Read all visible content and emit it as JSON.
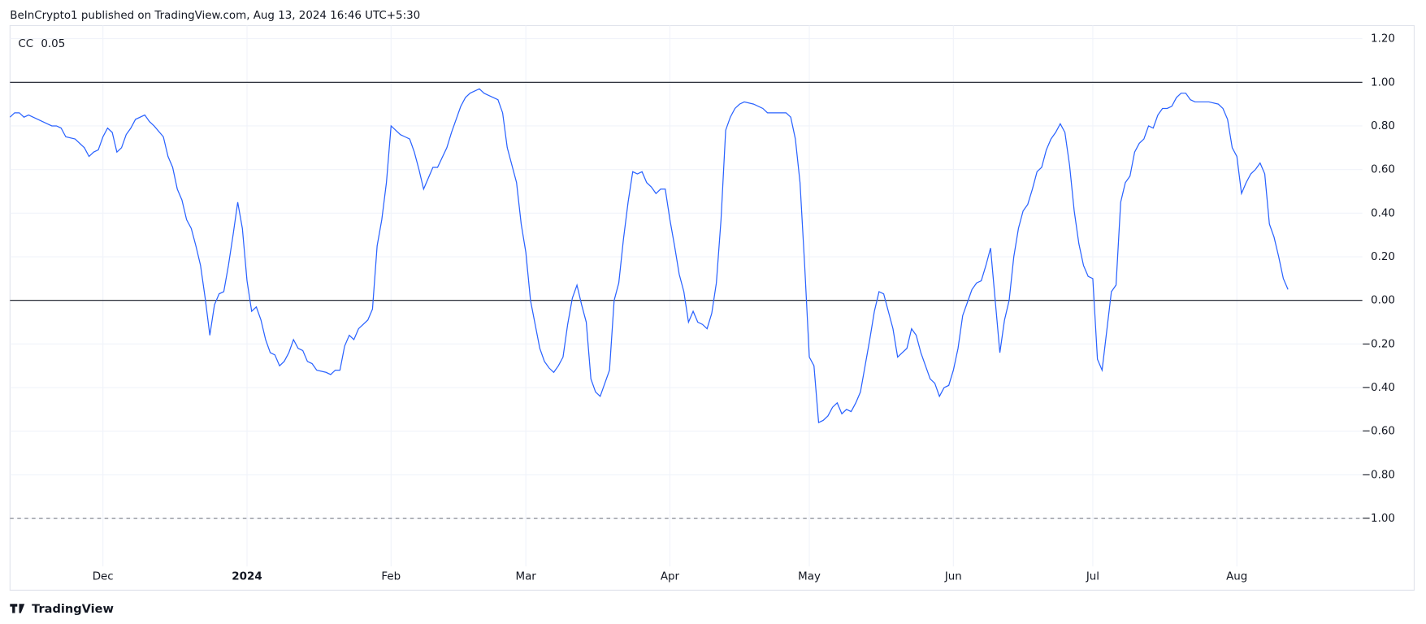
{
  "header": "BeInCrypto1 published on TradingView.com, Aug 13, 2024 16:46 UTC+5:30",
  "footer": "TradingView",
  "chart_data": {
    "type": "line",
    "current_value": 0.05,
    "x": [
      0,
      1,
      2,
      3,
      4,
      6,
      8,
      9,
      10,
      11,
      12,
      14,
      16,
      17,
      18,
      19,
      20,
      21,
      22,
      23,
      24,
      25,
      26,
      27,
      29,
      30,
      31,
      33,
      34,
      35,
      36,
      37,
      38,
      39,
      40,
      41,
      42,
      43,
      44,
      45,
      46,
      47,
      48,
      49,
      50,
      51,
      52,
      53,
      54,
      55,
      56,
      57,
      58,
      59,
      60,
      61,
      62,
      63,
      64,
      65,
      66,
      68,
      69,
      70,
      71,
      72,
      73,
      74,
      75,
      77,
      78,
      79,
      80,
      81,
      82,
      83,
      84,
      85,
      86,
      87,
      88,
      89,
      90,
      91,
      92,
      94,
      95,
      96,
      97,
      98,
      99,
      101,
      102,
      103,
      105,
      106,
      107,
      109,
      110,
      111,
      112,
      113,
      114,
      115,
      116,
      117,
      118,
      119,
      120,
      121,
      122,
      123,
      124,
      125,
      126,
      127,
      128,
      129,
      130,
      131,
      132,
      133,
      134,
      135,
      136,
      137,
      138,
      139,
      140,
      141,
      142,
      143,
      144,
      145,
      146,
      147,
      148,
      149,
      150,
      151,
      152,
      153,
      154,
      155,
      156,
      157,
      158,
      160,
      162,
      163,
      165,
      167,
      168,
      169,
      170,
      171,
      172,
      173,
      174,
      175,
      176,
      177,
      178,
      179,
      180,
      181,
      182,
      183,
      184,
      185,
      186,
      187,
      188,
      189,
      190,
      191,
      192,
      193,
      194,
      195,
      196,
      197,
      198,
      199,
      200,
      201,
      202,
      203,
      204,
      205,
      206,
      207,
      208,
      209,
      210,
      211,
      212,
      213,
      214,
      215,
      216,
      217,
      218,
      219,
      220,
      221,
      222,
      223,
      224,
      225,
      226,
      227,
      228,
      229,
      230,
      231,
      232,
      233,
      234,
      235,
      236,
      237,
      238,
      239,
      240,
      241,
      242,
      243,
      244,
      245,
      246,
      247,
      248,
      249,
      250,
      251,
      252,
      253,
      254,
      255,
      256,
      257,
      258,
      260,
      261,
      262,
      263,
      264,
      265,
      266,
      267,
      268,
      269,
      270,
      271,
      272,
      273,
      274,
      275
    ],
    "series": [
      {
        "name": "CC",
        "color": "#2962ff",
        "values": [
          0.84,
          0.86,
          0.86,
          0.84,
          0.85,
          0.83,
          0.81,
          0.8,
          0.8,
          0.79,
          0.75,
          0.74,
          0.7,
          0.66,
          0.68,
          0.69,
          0.75,
          0.79,
          0.77,
          0.68,
          0.7,
          0.76,
          0.79,
          0.83,
          0.85,
          0.82,
          0.8,
          0.75,
          0.66,
          0.61,
          0.51,
          0.46,
          0.37,
          0.33,
          0.25,
          0.16,
          0.01,
          -0.16,
          -0.02,
          0.03,
          0.04,
          0.16,
          0.3,
          0.45,
          0.33,
          0.09,
          -0.05,
          -0.03,
          -0.09,
          -0.18,
          -0.24,
          -0.25,
          -0.3,
          -0.28,
          -0.24,
          -0.18,
          -0.22,
          -0.23,
          -0.28,
          -0.29,
          -0.32,
          -0.33,
          -0.34,
          -0.32,
          -0.32,
          -0.21,
          -0.16,
          -0.18,
          -0.13,
          -0.09,
          -0.04,
          0.25,
          0.37,
          0.54,
          0.8,
          0.78,
          0.76,
          0.75,
          0.74,
          0.68,
          0.6,
          0.51,
          0.56,
          0.61,
          0.61,
          0.7,
          0.77,
          0.83,
          0.89,
          0.93,
          0.95,
          0.97,
          0.95,
          0.94,
          0.92,
          0.86,
          0.7,
          0.54,
          0.35,
          0.22,
          0.0,
          -0.11,
          -0.22,
          -0.28,
          -0.31,
          -0.33,
          -0.3,
          -0.26,
          -0.11,
          0.01,
          0.07,
          -0.02,
          -0.1,
          -0.36,
          -0.42,
          -0.44,
          -0.38,
          -0.32,
          0.0,
          0.08,
          0.28,
          0.45,
          0.59,
          0.58,
          0.59,
          0.54,
          0.52,
          0.49,
          0.51,
          0.51,
          0.37,
          0.25,
          0.12,
          0.04,
          -0.1,
          -0.05,
          -0.1,
          -0.11,
          -0.13,
          -0.06,
          0.08,
          0.37,
          0.78,
          0.84,
          0.88,
          0.9,
          0.91,
          0.9,
          0.88,
          0.86,
          0.86,
          0.86,
          0.84,
          0.74,
          0.54,
          0.16,
          -0.26,
          -0.3,
          -0.56,
          -0.55,
          -0.53,
          -0.49,
          -0.47,
          -0.52,
          -0.5,
          -0.51,
          -0.47,
          -0.42,
          -0.3,
          -0.18,
          -0.05,
          0.04,
          0.03,
          -0.05,
          -0.13,
          -0.26,
          -0.24,
          -0.22,
          -0.13,
          -0.16,
          -0.24,
          -0.3,
          -0.36,
          -0.38,
          -0.44,
          -0.4,
          -0.39,
          -0.32,
          -0.22,
          -0.07,
          -0.01,
          0.05,
          0.08,
          0.09,
          0.16,
          0.24,
          0.0,
          -0.24,
          -0.09,
          0.0,
          0.2,
          0.33,
          0.41,
          0.44,
          0.51,
          0.59,
          0.61,
          0.69,
          0.74,
          0.77,
          0.81,
          0.77,
          0.62,
          0.41,
          0.26,
          0.16,
          0.11,
          0.1,
          -0.27,
          -0.32,
          -0.14,
          0.04,
          0.07,
          0.45,
          0.54,
          0.57,
          0.68,
          0.72,
          0.74,
          0.8,
          0.79,
          0.85,
          0.88,
          0.88,
          0.89,
          0.93,
          0.95,
          0.95,
          0.92,
          0.91,
          0.91,
          0.91,
          0.91,
          0.9,
          0.88,
          0.83,
          0.7,
          0.66,
          0.49,
          0.54,
          0.58,
          0.6,
          0.63,
          0.58,
          0.35,
          0.29,
          0.2,
          0.1,
          0.05
        ]
      }
    ],
    "xlim": [
      0,
      291
    ],
    "xticks": [
      {
        "value": 20,
        "label": "Dec"
      },
      {
        "value": 51,
        "label": "2024"
      },
      {
        "value": 82,
        "label": "Feb"
      },
      {
        "value": 111,
        "label": "Mar"
      },
      {
        "value": 142,
        "label": "Apr"
      },
      {
        "value": 172,
        "label": "May"
      },
      {
        "value": 203,
        "label": "Jun"
      },
      {
        "value": 233,
        "label": "Jul"
      },
      {
        "value": 264,
        "label": "Aug"
      }
    ],
    "ylim": [
      -1.22,
      1.26
    ],
    "yticks": [
      {
        "value": 1.2,
        "label": "1.20"
      },
      {
        "value": 1,
        "label": "1.00"
      },
      {
        "value": 0.8,
        "label": "0.80"
      },
      {
        "value": 0.6,
        "label": "0.60"
      },
      {
        "value": 0.4,
        "label": "0.40"
      },
      {
        "value": 0.2,
        "label": "0.20"
      },
      {
        "value": 0,
        "label": "0.00"
      },
      {
        "value": -0.2,
        "label": "−0.20"
      },
      {
        "value": -0.4,
        "label": "−0.40"
      },
      {
        "value": -0.6,
        "label": "−0.60"
      },
      {
        "value": -0.8,
        "label": "−0.80"
      },
      {
        "value": -1,
        "label": "−1.00"
      }
    ],
    "hlines": [
      1,
      0,
      -1
    ],
    "hline_styles": [
      "solid",
      "solid",
      "dashed"
    ],
    "grid": true
  }
}
